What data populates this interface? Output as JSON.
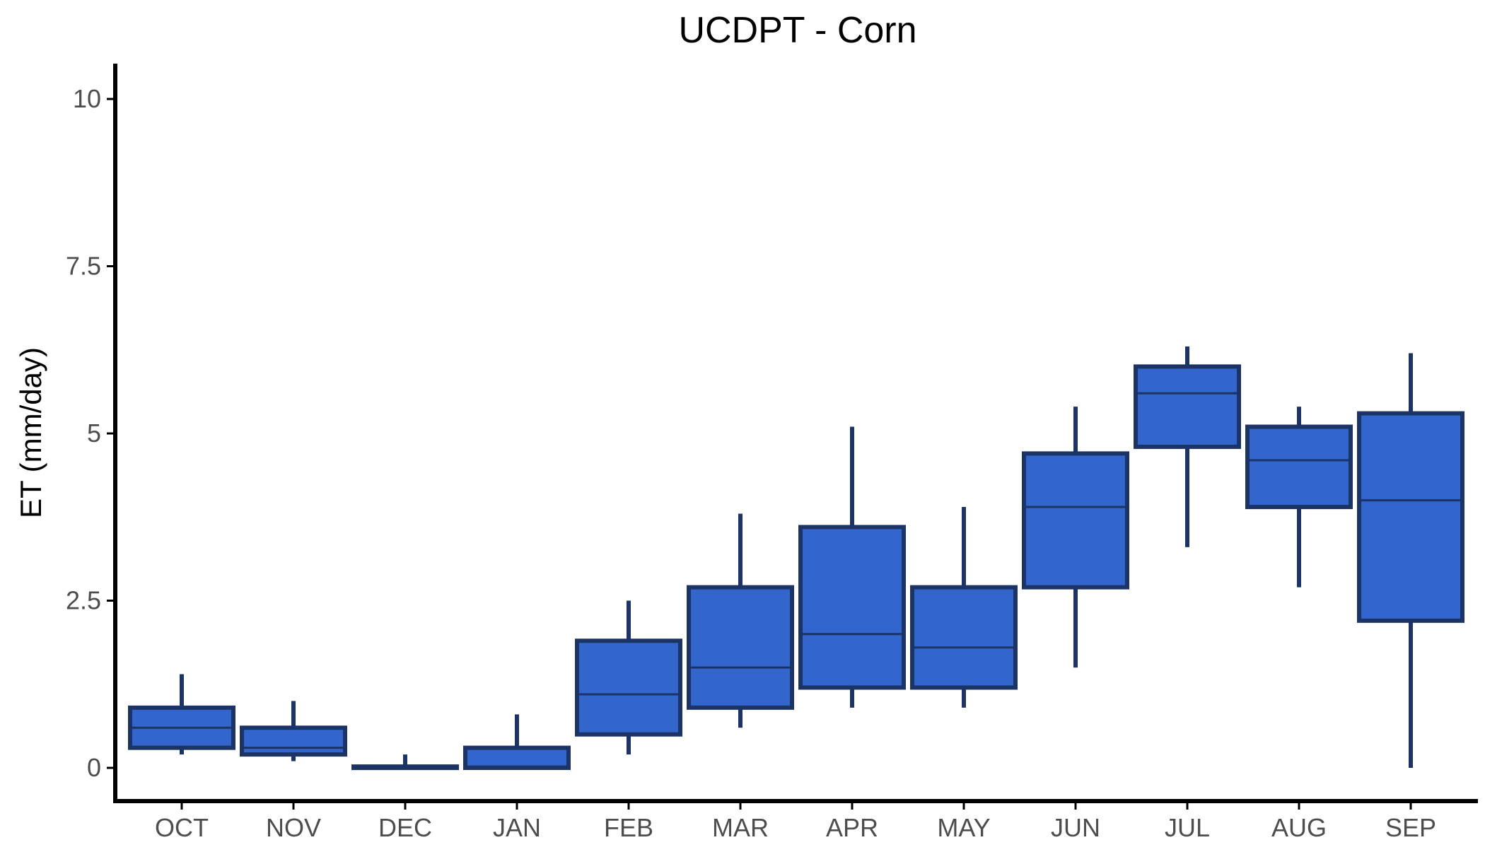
{
  "chart_data": {
    "type": "boxplot",
    "title": "UCDPT - Corn",
    "xlabel": "",
    "ylabel": "ET (mm/day)",
    "ylim": [
      -0.5,
      10.5
    ],
    "yticks": [
      0,
      2.5,
      5,
      7.5,
      10
    ],
    "ytick_labels": [
      "0",
      "2.5",
      "5",
      "7.5",
      "10"
    ],
    "grid": false,
    "legend": "none",
    "categories": [
      "OCT",
      "NOV",
      "DEC",
      "JAN",
      "FEB",
      "MAR",
      "APR",
      "MAY",
      "JUN",
      "JUL",
      "AUG",
      "SEP"
    ],
    "boxes": [
      {
        "min": 0.2,
        "q1": 0.3,
        "median": 0.6,
        "q3": 0.9,
        "max": 1.4
      },
      {
        "min": 0.1,
        "q1": 0.2,
        "median": 0.3,
        "q3": 0.6,
        "max": 1.0
      },
      {
        "min": 0.0,
        "q1": 0.0,
        "median": 0.0,
        "q3": 0.02,
        "max": 0.2
      },
      {
        "min": 0.0,
        "q1": 0.0,
        "median": 0.02,
        "q3": 0.3,
        "max": 0.8
      },
      {
        "min": 0.2,
        "q1": 0.5,
        "median": 1.1,
        "q3": 1.9,
        "max": 2.5
      },
      {
        "min": 0.6,
        "q1": 0.9,
        "median": 1.5,
        "q3": 2.7,
        "max": 3.8
      },
      {
        "min": 0.9,
        "q1": 1.2,
        "median": 2.0,
        "q3": 3.6,
        "max": 5.1
      },
      {
        "min": 0.9,
        "q1": 1.2,
        "median": 1.8,
        "q3": 2.7,
        "max": 3.9
      },
      {
        "min": 1.5,
        "q1": 2.7,
        "median": 3.9,
        "q3": 4.7,
        "max": 5.4
      },
      {
        "min": 3.3,
        "q1": 4.8,
        "median": 5.6,
        "q3": 6.0,
        "max": 6.3
      },
      {
        "min": 2.7,
        "q1": 3.9,
        "median": 4.6,
        "q3": 5.1,
        "max": 5.4
      },
      {
        "min": 0.0,
        "q1": 2.2,
        "median": 4.0,
        "q3": 5.3,
        "max": 6.2
      }
    ],
    "colors": {
      "box_fill": "#3366cc",
      "box_stroke": "#1c3366",
      "axis": "#000000",
      "tick_label": "#4d4d4d"
    }
  }
}
